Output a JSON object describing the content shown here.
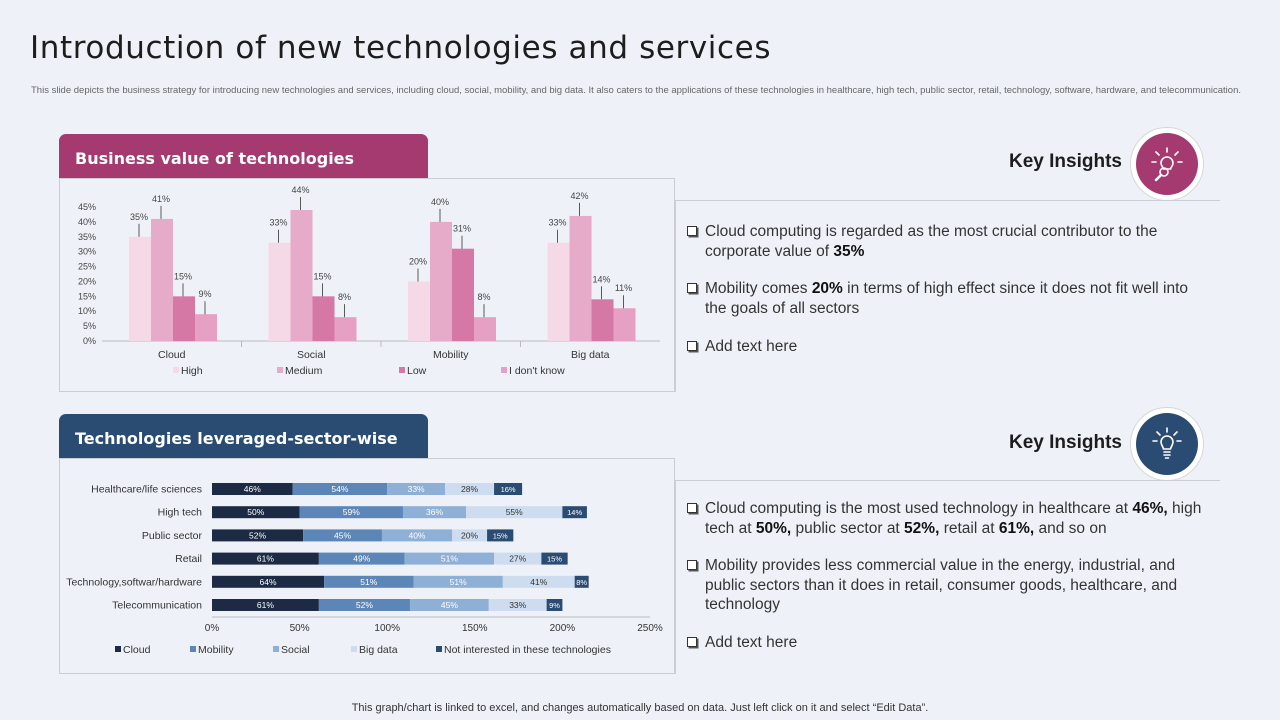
{
  "title": "Introduction of new technologies and services",
  "subtitle": "This slide depicts the business strategy for introducing new technologies and services, including cloud, social, mobility, and big data. It also caters to the applications of these technologies in healthcare, high tech, public sector, retail, technology, software, hardware, and telecommunication.",
  "panel1": {
    "header": "Business value of technologies"
  },
  "panel2": {
    "header": "Technologies leveraged-sector-wise"
  },
  "insights1": {
    "title": "Key Insights",
    "icon": "bulb-search-icon",
    "bullets": [
      {
        "before": "Cloud computing is regarded as the most crucial contributor to the corporate value of ",
        "bold": "35%",
        "after": ""
      },
      {
        "before": "Mobility comes ",
        "bold": "20%",
        "after": " in terms of high effect since it does not fit well into the goals of all sectors"
      },
      {
        "before": "Add text here",
        "bold": "",
        "after": ""
      }
    ]
  },
  "insights2": {
    "title": "Key Insights",
    "icon": "bulb-icon",
    "bullet1": {
      "p1": "Cloud computing is the most used technology in healthcare at ",
      "b1": "46%,",
      "p2": " high tech at ",
      "b2": "50%,",
      "p3": " public sector at ",
      "b3": "52%,",
      "p4": " retail at ",
      "b4": "61%,",
      "p5": " and so on"
    },
    "bullet2": "Mobility provides less commercial value in the energy, industrial, and public sectors than it does in retail, consumer goods, healthcare, and technology",
    "bullet3": "Add text here"
  },
  "footer": "This graph/chart is linked to excel, and changes automatically based on data. Just left click on it and select “Edit Data”.",
  "chart_data": [
    {
      "type": "bar",
      "categories": [
        "Cloud",
        "Social",
        "Mobility",
        "Big data"
      ],
      "series": [
        {
          "name": "High",
          "values": [
            35,
            33,
            20,
            33
          ],
          "color": "#f5d9e6"
        },
        {
          "name": "Medium",
          "values": [
            41,
            44,
            40,
            42
          ],
          "color": "#e6abc8"
        },
        {
          "name": "Low",
          "values": [
            15,
            15,
            31,
            14
          ],
          "color": "#d678a6"
        },
        {
          "name": "I don't know",
          "values": [
            9,
            8,
            8,
            11
          ],
          "color": "#e6a0c3"
        }
      ],
      "yticks": [
        "0%",
        "5%",
        "10%",
        "15%",
        "20%",
        "25%",
        "30%",
        "35%",
        "40%",
        "45%"
      ],
      "ylim": [
        0,
        45
      ],
      "legend": "bottom",
      "value_suffix": "%"
    },
    {
      "type": "bar",
      "orientation": "horizontal-stacked",
      "categories": [
        "Healthcare/life sciences",
        "High tech",
        "Public sector",
        "Retail",
        "Technology,softwar/hardware",
        "Telecommunication"
      ],
      "series": [
        {
          "name": "Cloud",
          "values": [
            46,
            50,
            52,
            61,
            64,
            61
          ],
          "color": "#1c2a44"
        },
        {
          "name": "Mobility",
          "values": [
            54,
            59,
            45,
            49,
            51,
            52
          ],
          "color": "#5d86b8"
        },
        {
          "name": "Social",
          "values": [
            33,
            36,
            40,
            51,
            51,
            45
          ],
          "color": "#8fb0d6"
        },
        {
          "name": "Big data",
          "values": [
            28,
            55,
            20,
            27,
            41,
            33
          ],
          "color": "#cddcee"
        },
        {
          "name": "Not interested in these technologies",
          "values": [
            16,
            14,
            15,
            15,
            8,
            9
          ],
          "color": "#2b4c72"
        }
      ],
      "xticks": [
        "0%",
        "50%",
        "100%",
        "150%",
        "200%",
        "250%"
      ],
      "xlim": [
        0,
        250
      ],
      "legend": "bottom",
      "value_suffix": "%"
    }
  ]
}
